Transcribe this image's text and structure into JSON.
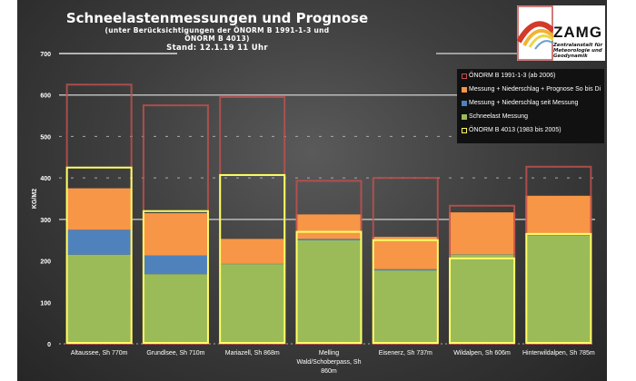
{
  "chart_data": {
    "type": "bar",
    "title": "Schneelastenmessungen und Prognose",
    "subtitle_line1": "(unter Berücksichtigungen der ÖNORM B 1991-1-3 und",
    "subtitle_line2": "ÖNORM B 4013)",
    "stand": "Stand: 12.1.19 11 Uhr",
    "ylabel": "KG/M2",
    "ylim": [
      0,
      700
    ],
    "yticks": [
      0,
      100,
      200,
      300,
      400,
      500,
      600,
      700
    ],
    "legend_position": "top-right",
    "categories": [
      [
        "Altaussee, Sh 770m"
      ],
      [
        "Grundlsee, Sh 710m"
      ],
      [
        "Mariazell, Sh 868m"
      ],
      [
        "Melling",
        "Wald/Schoberpass, Sh",
        "860m"
      ],
      [
        "Eisenerz, Sh 737m"
      ],
      [
        "Wildalpen, Sh 606m"
      ],
      [
        "Hinterwildalpen, Sh 785m"
      ]
    ],
    "series": [
      {
        "name": "ÖNORM B 1991-1-3 (ab 2006)",
        "style": "outline",
        "color": "#c0504d",
        "values": [
          625,
          575,
          595,
          393,
          400,
          333,
          427
        ]
      },
      {
        "name": "Messung + Niederschlag + Prognose So bis Di",
        "style": "fill",
        "color": "#f79646",
        "values": [
          375,
          315,
          253,
          312,
          258,
          317,
          357
        ]
      },
      {
        "name": "Messung + Niederschlag seit Messung",
        "style": "fill",
        "color": "#4f81bd",
        "values": [
          275,
          213,
          193,
          253,
          180,
          216,
          262
        ]
      },
      {
        "name": "Schneelast Messung",
        "style": "fill",
        "color": "#9bbb59",
        "values": [
          215,
          168,
          193,
          250,
          177,
          216,
          262
        ]
      },
      {
        "name": "ÖNORM B 4013 (1983 bis 2005)",
        "style": "outline",
        "color": "#ffff66",
        "values": [
          425,
          320,
          407,
          270,
          250,
          206,
          265
        ]
      }
    ],
    "gridlines": {
      "solid": [
        300,
        600,
        700
      ],
      "dashed": [
        400,
        500
      ]
    }
  },
  "logo": {
    "name": "ZAMG",
    "line1": "Zentralanstalt für",
    "line2": "Meteorologie und",
    "line3": "Geodynamik"
  }
}
